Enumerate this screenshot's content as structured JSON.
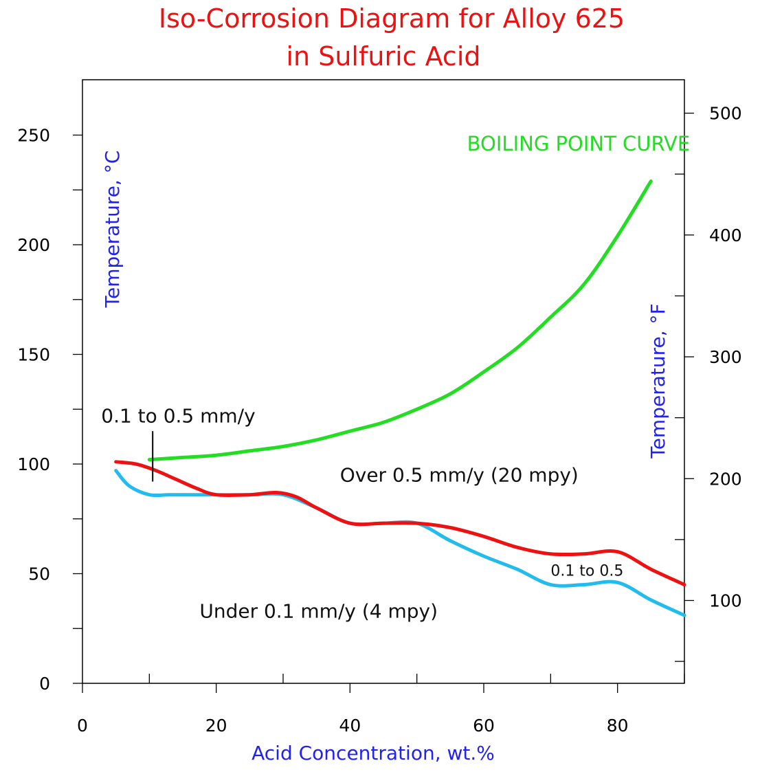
{
  "chart_data": {
    "type": "line",
    "title_lines": [
      "Iso-Corrosion Diagram for Alloy 625",
      "in Sulfuric Acid"
    ],
    "xlabel": "Acid Concentration, wt.%",
    "ylabel": "Temperature, °C",
    "y2label": "Temperature, °F",
    "xlim": [
      0,
      90
    ],
    "ylim": [
      0,
      275
    ],
    "x_ticks": [
      {
        "value": 0,
        "label": "0"
      },
      {
        "value": 20,
        "label": "20"
      },
      {
        "value": 40,
        "label": "40"
      },
      {
        "value": 60,
        "label": "60"
      },
      {
        "value": 80,
        "label": "80"
      }
    ],
    "x_minor_ticks": [
      10,
      30,
      50,
      70,
      90
    ],
    "y_ticks": [
      {
        "value": 0,
        "label": "0"
      },
      {
        "value": 50,
        "label": "50"
      },
      {
        "value": 100,
        "label": "100"
      },
      {
        "value": 150,
        "label": "150"
      },
      {
        "value": 200,
        "label": "200"
      },
      {
        "value": 250,
        "label": "250"
      }
    ],
    "y_minor_ticks": [
      25,
      75,
      125,
      175,
      225
    ],
    "y2_ticks": [
      {
        "value": 100,
        "label": "100"
      },
      {
        "value": 200,
        "label": "200"
      },
      {
        "value": 300,
        "label": "300"
      },
      {
        "value": 400,
        "label": "400"
      },
      {
        "value": 500,
        "label": "500"
      }
    ],
    "y2_minor_ticks": [
      50,
      150,
      250,
      350,
      450
    ],
    "grid": false,
    "series": [
      {
        "color": "#22dd22",
        "x": [
          10,
          15,
          20,
          25,
          30,
          35,
          40,
          45,
          50,
          55,
          60,
          65,
          70,
          75,
          80,
          85
        ],
        "y": [
          102,
          103,
          104,
          106,
          108,
          111,
          115,
          119,
          125,
          132,
          142,
          153,
          167,
          182,
          204,
          229
        ]
      },
      {
        "color": "#ee1111",
        "x": [
          5,
          8,
          11,
          14,
          17,
          20,
          25,
          29,
          32,
          35,
          40,
          45,
          50,
          55,
          60,
          65,
          70,
          75,
          80,
          85,
          90
        ],
        "y": [
          101,
          100,
          97,
          93,
          89,
          86,
          86,
          87,
          85,
          80,
          73,
          73,
          73,
          71,
          67,
          62,
          59,
          59,
          60,
          52,
          45
        ]
      },
      {
        "color": "#22bbee",
        "x": [
          5,
          7,
          10,
          13,
          17,
          20,
          25,
          30,
          35,
          40,
          45,
          50,
          55,
          60,
          65,
          70,
          75,
          80,
          85,
          90
        ],
        "y": [
          97,
          90,
          86,
          86,
          86,
          86,
          86,
          86,
          80,
          73,
          73,
          73,
          65,
          58,
          52,
          45,
          45,
          46,
          38,
          31
        ]
      }
    ],
    "annotations": [
      {
        "text": "BOILING POINT CURVE",
        "x": 57.5,
        "y": 243,
        "anchor": "start",
        "class": "boiling",
        "color": "#22dd22"
      },
      {
        "text": "0.1 to 0.5 mm/y",
        "x": 2.8,
        "y": 119,
        "anchor": "start",
        "class": "annotation"
      },
      {
        "text": "Over 0.5 mm/y (20 mpy)",
        "x": 38.5,
        "y": 92,
        "anchor": "start",
        "class": "annotation"
      },
      {
        "text": "0.1 to 0.5",
        "x": 70,
        "y": 49,
        "anchor": "start",
        "class": "annotation-small"
      },
      {
        "text": "Under 0.1 mm/y (4 mpy)",
        "x": 17.5,
        "y": 30,
        "anchor": "start",
        "class": "annotation"
      }
    ],
    "marker_line": {
      "x": 10.5,
      "y1": 92,
      "y2": 115
    },
    "colors": {
      "ylabel": "#2222ee",
      "xlabel": "#2222ee",
      "title": "#ee1111"
    }
  }
}
